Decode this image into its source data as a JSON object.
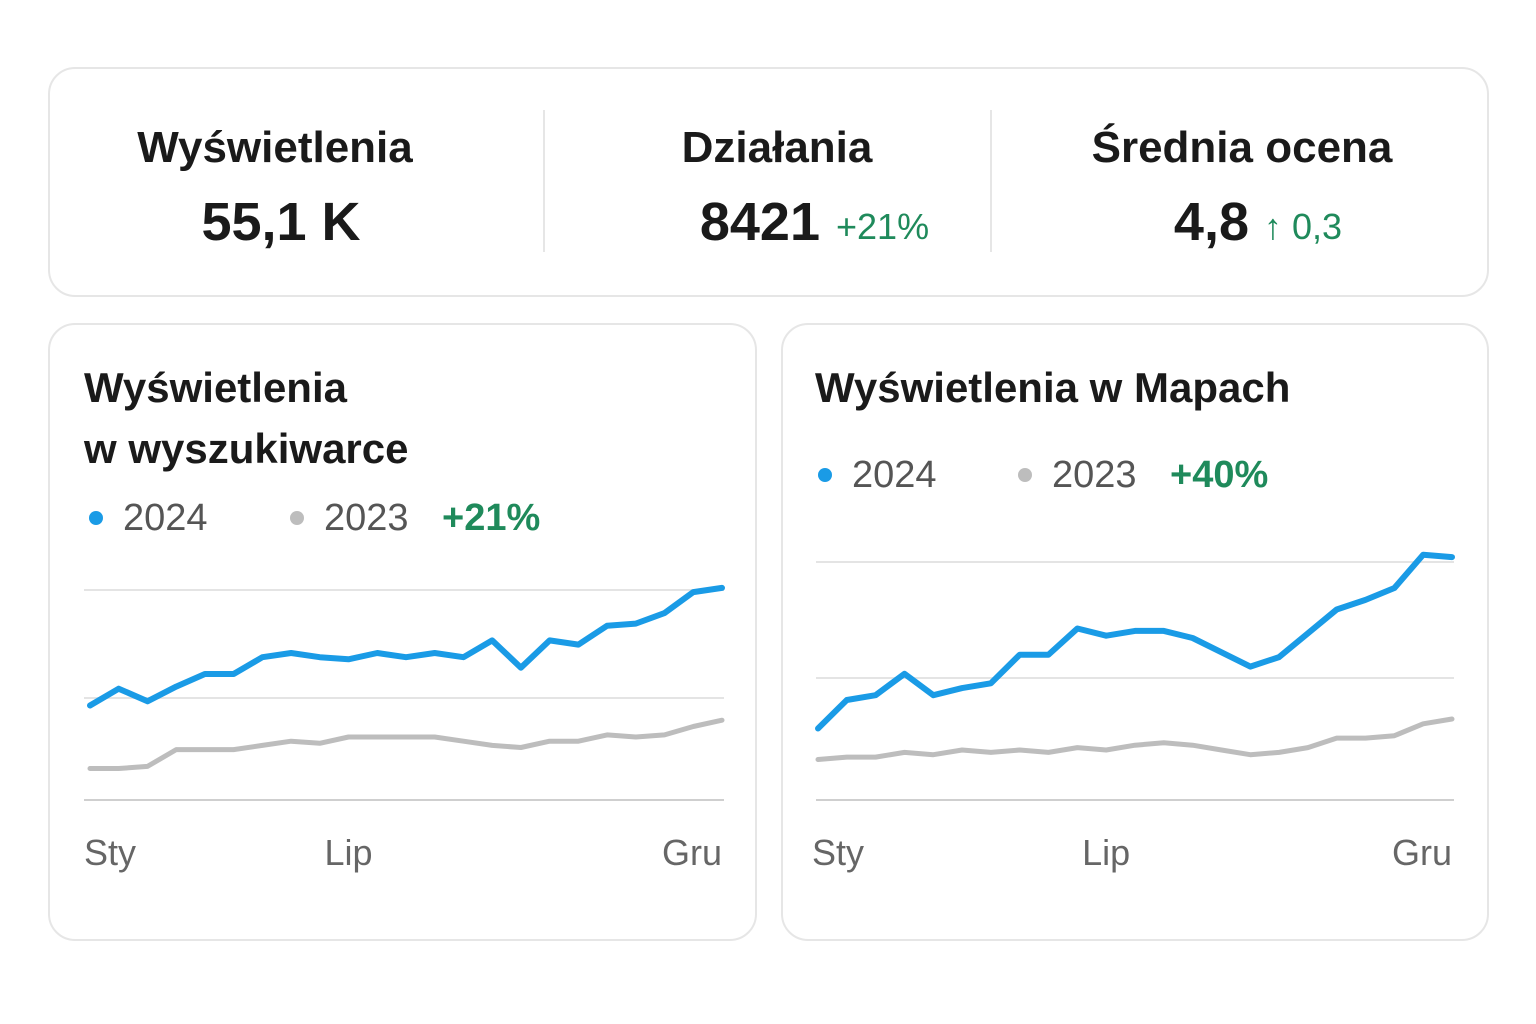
{
  "summary": [
    {
      "label": "Wyświetlenia",
      "value": "55,1 K"
    },
    {
      "label": "Działania",
      "value": "8421",
      "change": "+21%"
    },
    {
      "label": "Średnia ocena",
      "value": "4,8",
      "change": "↑ 0,3"
    }
  ],
  "chart_data": [
    {
      "type": "line",
      "title": [
        "Wyświetlenia",
        "w wyszukiwarce"
      ],
      "change": "+21%",
      "categories": [
        "Sty",
        null,
        null,
        null,
        null,
        null,
        null,
        null,
        null,
        "Lip",
        null,
        null,
        null,
        null,
        null,
        null,
        null,
        null,
        null,
        null,
        null,
        null,
        "Gru"
      ],
      "ylim": [
        0,
        110
      ],
      "series": [
        {
          "name": "2024",
          "color": "#1a9be6",
          "values": [
            45,
            53,
            47,
            54,
            60,
            60,
            68,
            70,
            68,
            67,
            70,
            68,
            70,
            68,
            76,
            63,
            76,
            74,
            83,
            84,
            89,
            99,
            101
          ]
        },
        {
          "name": "2023",
          "color": "#bdbdbd",
          "values": [
            15,
            15,
            16,
            24,
            24,
            24,
            26,
            28,
            27,
            30,
            30,
            30,
            30,
            28,
            26,
            25,
            28,
            28,
            31,
            30,
            31,
            35,
            38
          ]
        }
      ]
    },
    {
      "type": "line",
      "title": [
        "Wyświetlenia w Mapach"
      ],
      "change": "+40%",
      "categories": [
        "Sty",
        null,
        null,
        null,
        null,
        null,
        null,
        null,
        null,
        null,
        "Lip",
        null,
        null,
        null,
        null,
        null,
        null,
        null,
        null,
        null,
        null,
        null,
        "Gru"
      ],
      "ylim": [
        0,
        110
      ],
      "series": [
        {
          "name": "2024",
          "color": "#1a9be6",
          "values": [
            30,
            42,
            44,
            53,
            44,
            47,
            49,
            61,
            61,
            72,
            69,
            71,
            71,
            68,
            62,
            56,
            60,
            70,
            80,
            84,
            89,
            103,
            102
          ]
        },
        {
          "name": "2023",
          "color": "#bdbdbd",
          "values": [
            17,
            18,
            18,
            20,
            19,
            21,
            20,
            21,
            20,
            22,
            21,
            23,
            24,
            23,
            21,
            19,
            20,
            22,
            26,
            26,
            27,
            32,
            34
          ]
        }
      ]
    }
  ]
}
